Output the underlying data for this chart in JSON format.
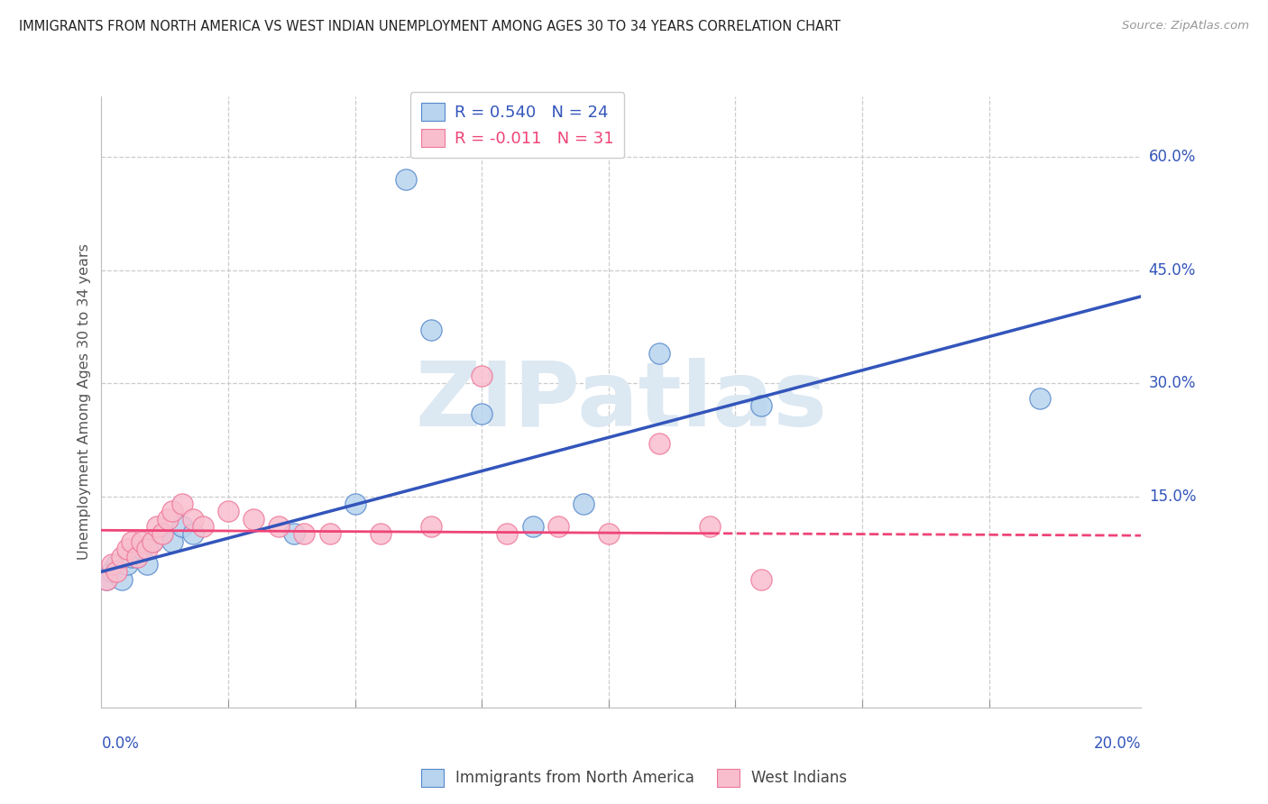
{
  "title": "IMMIGRANTS FROM NORTH AMERICA VS WEST INDIAN UNEMPLOYMENT AMONG AGES 30 TO 34 YEARS CORRELATION CHART",
  "source": "Source: ZipAtlas.com",
  "ylabel": "Unemployment Among Ages 30 to 34 years",
  "r_blue": 0.54,
  "n_blue": 24,
  "r_pink": -0.011,
  "n_pink": 31,
  "legend_label_blue": "Immigrants from North America",
  "legend_label_pink": "West Indians",
  "yticks": [
    0.15,
    0.3,
    0.45,
    0.6
  ],
  "ytick_labels": [
    "15.0%",
    "30.0%",
    "45.0%",
    "60.0%"
  ],
  "xtick_vals": [
    0.025,
    0.05,
    0.075,
    0.1,
    0.125,
    0.15,
    0.175
  ],
  "xlim": [
    0.0,
    0.205
  ],
  "ylim": [
    -0.13,
    0.68
  ],
  "blue_scatter_color": "#b8d4ee",
  "blue_edge_color": "#5588cc",
  "pink_scatter_color": "#f8bece",
  "pink_edge_color": "#ee7799",
  "blue_line_color": "#3355bb",
  "pink_line_color": "#ee4477",
  "watermark_color": "#dce8f2",
  "watermark": "ZIPatlas",
  "blue_x": [
    0.001,
    0.002,
    0.003,
    0.004,
    0.005,
    0.006,
    0.007,
    0.008,
    0.009,
    0.01,
    0.012,
    0.014,
    0.016,
    0.018,
    0.038,
    0.05,
    0.06,
    0.065,
    0.075,
    0.085,
    0.095,
    0.11,
    0.13,
    0.185
  ],
  "blue_y": [
    0.04,
    0.05,
    0.06,
    0.04,
    0.06,
    0.07,
    0.07,
    0.08,
    0.06,
    0.09,
    0.1,
    0.09,
    0.11,
    0.1,
    0.1,
    0.14,
    0.57,
    0.37,
    0.26,
    0.11,
    0.14,
    0.34,
    0.27,
    0.28
  ],
  "pink_x": [
    0.001,
    0.002,
    0.003,
    0.004,
    0.005,
    0.006,
    0.007,
    0.008,
    0.009,
    0.01,
    0.011,
    0.012,
    0.013,
    0.014,
    0.016,
    0.018,
    0.02,
    0.025,
    0.03,
    0.035,
    0.04,
    0.045,
    0.055,
    0.065,
    0.075,
    0.08,
    0.09,
    0.1,
    0.11,
    0.12,
    0.13
  ],
  "pink_y": [
    0.04,
    0.06,
    0.05,
    0.07,
    0.08,
    0.09,
    0.07,
    0.09,
    0.08,
    0.09,
    0.11,
    0.1,
    0.12,
    0.13,
    0.14,
    0.12,
    0.11,
    0.13,
    0.12,
    0.11,
    0.1,
    0.1,
    0.1,
    0.11,
    0.31,
    0.1,
    0.11,
    0.1,
    0.22,
    0.11,
    0.04
  ],
  "blue_line_x0": 0.0,
  "blue_line_x1": 0.205,
  "blue_line_y0": 0.05,
  "blue_line_y1": 0.415,
  "pink_line_x0": 0.0,
  "pink_line_x1": 0.205,
  "pink_line_y0": 0.105,
  "pink_line_y1": 0.098
}
